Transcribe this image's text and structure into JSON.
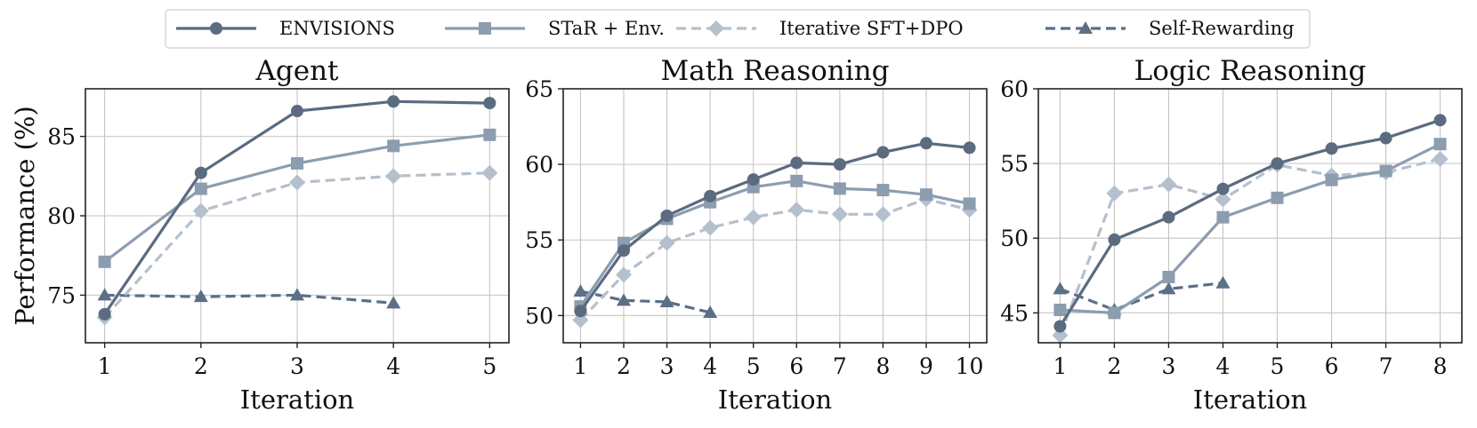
{
  "legend": {
    "entries": [
      {
        "name": "ENVISIONS",
        "color": "#5b6b80",
        "dash": "solid",
        "marker": "circle"
      },
      {
        "name": "STaR + Env.",
        "color": "#8d9db0",
        "dash": "solid",
        "marker": "square"
      },
      {
        "name": "Iterative SFT+DPO",
        "color": "#b4c0cc",
        "dash": "dashed",
        "marker": "diamond"
      },
      {
        "name": "Self-Rewarding",
        "color": "#5b6f86",
        "dash": "dashed",
        "marker": "triangle"
      }
    ],
    "placement": "top-center"
  },
  "chart_data": [
    {
      "type": "line",
      "title": "Agent",
      "xlabel": "Iteration",
      "ylabel": "Performance (%)",
      "xlim": [
        0.8,
        5.2
      ],
      "ylim": [
        72.0,
        88.0
      ],
      "xticks": [
        1,
        2,
        3,
        4,
        5
      ],
      "yticks": [
        75,
        80,
        85
      ],
      "grid": true,
      "series": [
        {
          "name": "ENVISIONS",
          "x": [
            1,
            2,
            3,
            4,
            5
          ],
          "y": [
            73.8,
            82.7,
            86.6,
            87.2,
            87.1
          ]
        },
        {
          "name": "STaR + Env.",
          "x": [
            1,
            2,
            3,
            4,
            5
          ],
          "y": [
            77.1,
            81.7,
            83.3,
            84.4,
            85.1
          ]
        },
        {
          "name": "Iterative SFT+DPO",
          "x": [
            1,
            2,
            3,
            4,
            5
          ],
          "y": [
            73.6,
            80.3,
            82.1,
            82.5,
            82.7
          ]
        },
        {
          "name": "Self-Rewarding",
          "x": [
            1,
            2,
            3,
            4
          ],
          "y": [
            75.0,
            74.9,
            75.0,
            74.5
          ]
        }
      ]
    },
    {
      "type": "line",
      "title": "Math Reasoning",
      "xlabel": "Iteration",
      "ylabel": "",
      "xlim": [
        0.6,
        10.4
      ],
      "ylim": [
        48.2,
        65.0
      ],
      "xticks": [
        1,
        2,
        3,
        4,
        5,
        6,
        7,
        8,
        9,
        10
      ],
      "yticks": [
        50,
        55,
        60,
        65
      ],
      "grid": true,
      "series": [
        {
          "name": "ENVISIONS",
          "x": [
            1,
            2,
            3,
            4,
            5,
            6,
            7,
            8,
            9,
            10
          ],
          "y": [
            50.3,
            54.3,
            56.6,
            57.9,
            59.0,
            60.1,
            60.0,
            60.8,
            61.4,
            61.1
          ]
        },
        {
          "name": "STaR + Env.",
          "x": [
            1,
            2,
            3,
            4,
            5,
            6,
            7,
            8,
            9,
            10
          ],
          "y": [
            50.6,
            54.8,
            56.4,
            57.5,
            58.5,
            58.9,
            58.4,
            58.3,
            58.0,
            57.4
          ]
        },
        {
          "name": "Iterative SFT+DPO",
          "x": [
            1,
            2,
            3,
            4,
            5,
            6,
            7,
            8,
            9,
            10
          ],
          "y": [
            49.7,
            52.7,
            54.8,
            55.8,
            56.5,
            57.0,
            56.7,
            56.7,
            57.7,
            57.0
          ]
        },
        {
          "name": "Self-Rewarding",
          "x": [
            1,
            2,
            3,
            4
          ],
          "y": [
            51.6,
            51.0,
            50.9,
            50.2
          ]
        }
      ]
    },
    {
      "type": "line",
      "title": "Logic Reasoning",
      "xlabel": "Iteration",
      "ylabel": "",
      "xlim": [
        0.6,
        8.4
      ],
      "ylim": [
        43.0,
        60.0
      ],
      "xticks": [
        1,
        2,
        3,
        4,
        5,
        6,
        7,
        8
      ],
      "yticks": [
        45,
        50,
        55,
        60
      ],
      "grid": true,
      "series": [
        {
          "name": "ENVISIONS",
          "x": [
            1,
            2,
            3,
            4,
            5,
            6,
            7,
            8
          ],
          "y": [
            44.1,
            49.9,
            51.4,
            53.3,
            55.0,
            56.0,
            56.7,
            57.9
          ]
        },
        {
          "name": "STaR + Env.",
          "x": [
            1,
            2,
            3,
            4,
            5,
            6,
            7,
            8
          ],
          "y": [
            45.2,
            45.0,
            47.4,
            51.4,
            52.7,
            53.9,
            54.5,
            56.3
          ]
        },
        {
          "name": "Iterative SFT+DPO",
          "x": [
            1,
            2,
            3,
            4,
            5,
            6,
            7,
            8
          ],
          "y": [
            43.5,
            53.0,
            53.6,
            52.6,
            54.9,
            54.2,
            54.4,
            55.3
          ]
        },
        {
          "name": "Self-Rewarding",
          "x": [
            1,
            2,
            3,
            4
          ],
          "y": [
            46.6,
            45.2,
            46.6,
            47.0
          ]
        }
      ]
    }
  ]
}
